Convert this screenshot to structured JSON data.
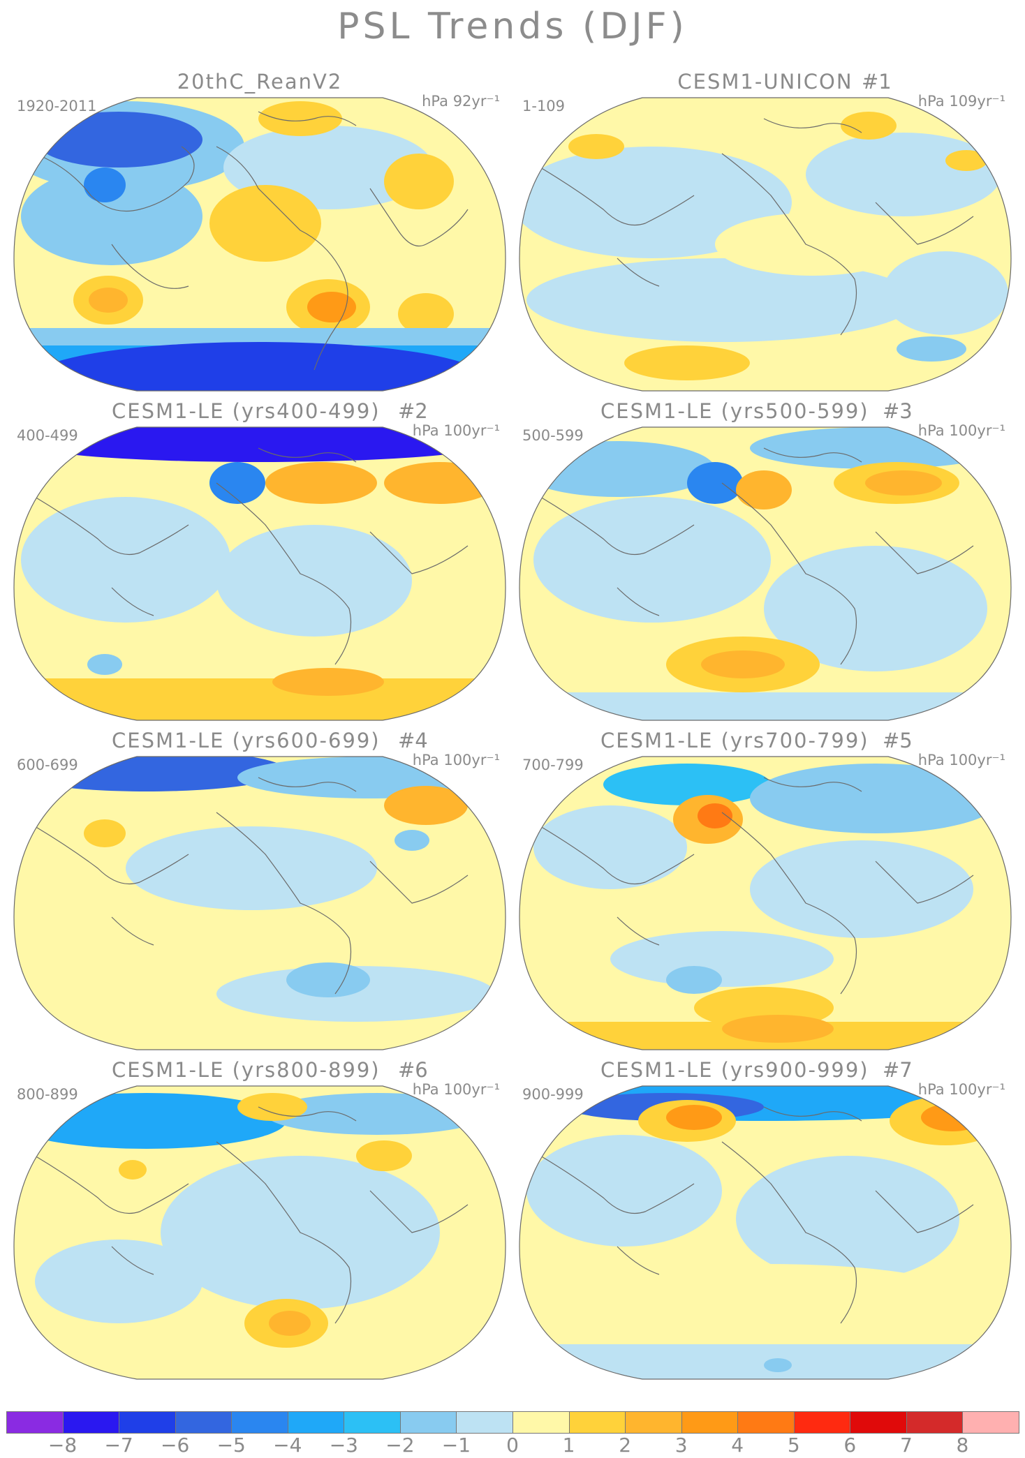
{
  "title": "PSL Trends (DJF)",
  "panels": [
    {
      "title": "20thC_ReanV2",
      "id": "",
      "period": "1920-2011",
      "units": "hPa 92yr⁻¹"
    },
    {
      "title": "CESM1-UNICON",
      "id": "#1",
      "period": "1-109",
      "units": "hPa 109yr⁻¹"
    },
    {
      "title": "CESM1-LE (yrs400-499)",
      "id": "#2",
      "period": "400-499",
      "units": "hPa 100yr⁻¹"
    },
    {
      "title": "CESM1-LE (yrs500-599)",
      "id": "#3",
      "period": "500-599",
      "units": "hPa 100yr⁻¹"
    },
    {
      "title": "CESM1-LE (yrs600-699)",
      "id": "#4",
      "period": "600-699",
      "units": "hPa 100yr⁻¹"
    },
    {
      "title": "CESM1-LE (yrs700-799)",
      "id": "#5",
      "period": "700-799",
      "units": "hPa 100yr⁻¹"
    },
    {
      "title": "CESM1-LE (yrs800-899)",
      "id": "#6",
      "period": "800-899",
      "units": "hPa 100yr⁻¹"
    },
    {
      "title": "CESM1-LE (yrs900-999)",
      "id": "#7",
      "period": "900-999",
      "units": "hPa 100yr⁻¹"
    }
  ],
  "colorbar": {
    "colors": [
      "#8a2be2",
      "#2a18f0",
      "#1f3fe8",
      "#3366e0",
      "#2a86f0",
      "#1fa8f8",
      "#2cc0f5",
      "#88cbf0",
      "#bde2f3",
      "#fff8a8",
      "#ffd23a",
      "#ffb52e",
      "#ff9a16",
      "#ff7a14",
      "#ff2a10",
      "#e00a0a",
      "#d42a2a",
      "#ffb0b0"
    ],
    "labels": [
      "−8",
      "−7",
      "−6",
      "−5",
      "−4",
      "−3",
      "−2",
      "−1",
      "0",
      "1",
      "2",
      "3",
      "4",
      "5",
      "6",
      "7",
      "8"
    ]
  },
  "colors": {
    "land_outline": "#6a6a6a",
    "text": "#8a8a8a"
  }
}
